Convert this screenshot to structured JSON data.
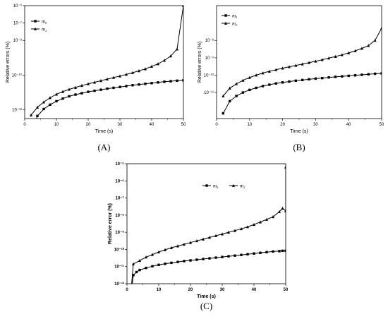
{
  "chart_data": [
    {
      "type": "line",
      "panel_label": "(A)",
      "xlabel": "Time (s)",
      "ylabel": "Relative errors (%)",
      "xlim": [
        0,
        50
      ],
      "ylim_exp": [
        -12.5,
        -6
      ],
      "y_scale": "log",
      "x_ticks": [
        "0",
        "10",
        "20",
        "30",
        "40",
        "50"
      ],
      "y_ticks": [
        {
          "exp": -12,
          "label": "10⁻¹²"
        },
        {
          "exp": -10,
          "label": "10⁻¹⁰"
        },
        {
          "exp": -8,
          "label": "10⁻⁸"
        },
        {
          "exp": -7,
          "label": "10⁻⁷"
        },
        {
          "exp": -6,
          "label": "10⁻⁶"
        }
      ],
      "legend_position": "top-left",
      "series": [
        {
          "name": "m₀",
          "marker": "square",
          "x": [
            2,
            4,
            6,
            8,
            10,
            12,
            14,
            16,
            18,
            20,
            22,
            24,
            26,
            28,
            30,
            32,
            34,
            36,
            38,
            40,
            42,
            44,
            46,
            48,
            50
          ],
          "log10_y": [
            -13.5,
            -12.35,
            -11.95,
            -11.7,
            -11.5,
            -11.35,
            -11.22,
            -11.12,
            -11.04,
            -10.96,
            -10.9,
            -10.84,
            -10.78,
            -10.73,
            -10.68,
            -10.63,
            -10.58,
            -10.54,
            -10.5,
            -10.46,
            -10.42,
            -10.38,
            -10.35,
            -10.32,
            -10.3
          ]
        },
        {
          "name": "m₂",
          "marker": "triangle",
          "x": [
            2,
            4,
            6,
            8,
            10,
            12,
            14,
            16,
            18,
            20,
            22,
            24,
            26,
            28,
            30,
            32,
            34,
            36,
            38,
            40,
            42,
            44,
            46,
            48,
            50
          ],
          "log10_y": [
            -12.3,
            -11.85,
            -11.55,
            -11.3,
            -11.1,
            -10.95,
            -10.82,
            -10.71,
            -10.6,
            -10.5,
            -10.41,
            -10.32,
            -10.23,
            -10.14,
            -10.05,
            -9.96,
            -9.86,
            -9.75,
            -9.64,
            -9.5,
            -9.35,
            -9.15,
            -8.9,
            -8.5,
            -6.0
          ]
        }
      ]
    },
    {
      "type": "line",
      "panel_label": "(B)",
      "xlabel": "Time (s)",
      "ylabel": "Relative errors (%)",
      "xlim": [
        0,
        50
      ],
      "ylim_exp": [
        -12.5,
        -6
      ],
      "y_scale": "log",
      "x_ticks": [
        "0",
        "10",
        "20",
        "30",
        "40",
        "50"
      ],
      "y_ticks": [
        {
          "exp": -11,
          "label": "10⁻¹¹"
        },
        {
          "exp": -10,
          "label": "10⁻¹⁰"
        },
        {
          "exp": -9,
          "label": "10⁻⁹"
        },
        {
          "exp": -8,
          "label": "10⁻⁸"
        }
      ],
      "legend_position": "top-left",
      "series": [
        {
          "name": "m₀",
          "marker": "square",
          "x": [
            2,
            4,
            6,
            8,
            10,
            12,
            14,
            16,
            18,
            20,
            22,
            24,
            26,
            28,
            30,
            32,
            34,
            36,
            38,
            40,
            42,
            44,
            46,
            48,
            50
          ],
          "log10_y": [
            -12.2,
            -11.5,
            -11.2,
            -11.0,
            -10.85,
            -10.73,
            -10.63,
            -10.55,
            -10.48,
            -10.42,
            -10.37,
            -10.32,
            -10.28,
            -10.24,
            -10.2,
            -10.17,
            -10.13,
            -10.1,
            -10.07,
            -10.04,
            -10.01,
            -9.98,
            -9.95,
            -9.92,
            -9.9
          ]
        },
        {
          "name": "m₂",
          "marker": "triangle",
          "x": [
            2,
            4,
            6,
            8,
            10,
            12,
            14,
            16,
            18,
            20,
            22,
            24,
            26,
            28,
            30,
            32,
            34,
            36,
            38,
            40,
            42,
            44,
            46,
            48,
            50
          ],
          "log10_y": [
            -11.2,
            -10.75,
            -10.5,
            -10.3,
            -10.14,
            -10.0,
            -9.88,
            -9.78,
            -9.69,
            -9.6,
            -9.52,
            -9.44,
            -9.36,
            -9.28,
            -9.2,
            -9.11,
            -9.02,
            -8.93,
            -8.83,
            -8.72,
            -8.6,
            -8.46,
            -8.3,
            -8.0,
            -7.3
          ]
        }
      ]
    },
    {
      "type": "line",
      "panel_label": "(C)",
      "xlabel": "Time (s)",
      "ylabel": "Relative error (%)",
      "xlim": [
        0,
        50
      ],
      "ylim_exp": [
        -12,
        -5
      ],
      "y_scale": "log",
      "x_ticks": [
        "0",
        "10",
        "20",
        "30",
        "40",
        "50"
      ],
      "y_ticks": [
        {
          "exp": -12,
          "label": "10⁻¹²"
        },
        {
          "exp": -11,
          "label": "10⁻¹¹"
        },
        {
          "exp": -10,
          "label": "10⁻¹⁰"
        },
        {
          "exp": -9,
          "label": "10⁻⁹"
        },
        {
          "exp": -8,
          "label": "10⁻⁸"
        },
        {
          "exp": -7,
          "label": "10⁻⁷"
        },
        {
          "exp": -6,
          "label": "10⁻⁶"
        },
        {
          "exp": -5,
          "label": "10⁻⁵"
        }
      ],
      "legend_position": "top-right",
      "series": [
        {
          "name": "m₀",
          "marker": "square",
          "x": [
            1,
            2,
            3,
            4,
            6,
            8,
            10,
            12,
            14,
            16,
            18,
            20,
            22,
            24,
            26,
            28,
            30,
            32,
            34,
            36,
            38,
            40,
            42,
            44,
            46,
            48,
            49,
            50
          ],
          "log10_y": [
            -13.0,
            -11.5,
            -11.32,
            -11.2,
            -11.08,
            -10.98,
            -10.9,
            -10.84,
            -10.78,
            -10.73,
            -10.68,
            -10.64,
            -10.6,
            -10.56,
            -10.52,
            -10.48,
            -10.44,
            -10.4,
            -10.36,
            -10.32,
            -10.28,
            -10.24,
            -10.2,
            -10.16,
            -10.12,
            -10.1,
            -10.08,
            -10.08
          ]
        },
        {
          "name": "m₂",
          "marker": "triangle",
          "x": [
            1,
            2,
            4,
            6,
            8,
            10,
            12,
            14,
            16,
            18,
            20,
            22,
            24,
            26,
            28,
            30,
            32,
            34,
            36,
            38,
            40,
            42,
            44,
            46,
            48,
            49,
            50,
            50
          ],
          "log10_y": [
            -13.0,
            -10.85,
            -10.65,
            -10.45,
            -10.3,
            -10.15,
            -10.02,
            -9.9,
            -9.8,
            -9.7,
            -9.6,
            -9.5,
            -9.4,
            -9.3,
            -9.2,
            -9.1,
            -9.0,
            -8.9,
            -8.8,
            -8.68,
            -8.55,
            -8.4,
            -8.25,
            -8.1,
            -7.8,
            -7.6,
            -7.75,
            -5.2
          ]
        }
      ]
    }
  ]
}
